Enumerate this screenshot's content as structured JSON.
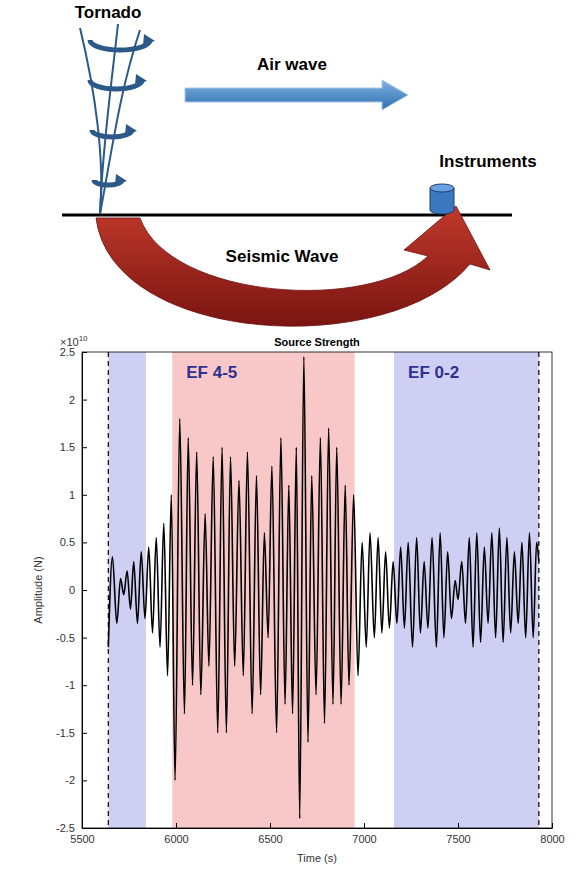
{
  "diagram": {
    "labels": {
      "tornado": "Tornado",
      "air_wave": "Air wave",
      "instruments": "Instruments",
      "seismic_wave": "Seismic Wave"
    }
  },
  "chart_data": {
    "type": "line",
    "title": "Source Strength",
    "x_label": "Time (s)",
    "y_label": "Amplitude (N)",
    "y_scale_text": "×10",
    "y_scale_exponent": "10",
    "color": "#000000",
    "grid": false,
    "xlim": [
      5500,
      8000
    ],
    "xticks": [
      5500,
      6000,
      6500,
      7000,
      7500,
      8000
    ],
    "ylim": [
      -2.5,
      2.5
    ],
    "yticks": [
      -2.5,
      -2,
      -1.5,
      -1,
      -0.5,
      0,
      0.5,
      1,
      1.5,
      2,
      2.5
    ],
    "regions": [
      {
        "x0": 5640,
        "x1": 5840,
        "color": "#cfcff4"
      },
      {
        "x0": 5980,
        "x1": 6950,
        "color": "#f8c8c8",
        "label": "EF 4-5"
      },
      {
        "x0": 7160,
        "x1": 7930,
        "color": "#cfcff4",
        "label": "EF 0-2"
      }
    ],
    "vlines": [
      5640,
      7930
    ],
    "x": [
      5640,
      5662,
      5685,
      5705,
      5722,
      5740,
      5758,
      5775,
      5795,
      5815,
      5835,
      5855,
      5875,
      5895,
      5915,
      5935,
      5955,
      5975,
      5995,
      6020,
      6045,
      6065,
      6088,
      6110,
      6132,
      6155,
      6175,
      6198,
      6222,
      6245,
      6268,
      6290,
      6312,
      6335,
      6358,
      6380,
      6405,
      6428,
      6450,
      6470,
      6490,
      6510,
      6535,
      6558,
      6580,
      6600,
      6620,
      6640,
      6658,
      6680,
      6702,
      6722,
      6745,
      6768,
      6790,
      6812,
      6835,
      6855,
      6878,
      6900,
      6920,
      6945,
      6968,
      6990,
      7012,
      7032,
      7055,
      7075,
      7095,
      7115,
      7135,
      7155,
      7175,
      7195,
      7215,
      7235,
      7258,
      7280,
      7300,
      7320,
      7340,
      7362,
      7385,
      7405,
      7425,
      7445,
      7465,
      7485,
      7500,
      7520,
      7540,
      7560,
      7580,
      7600,
      7620,
      7640,
      7660,
      7680,
      7700,
      7720,
      7740,
      7760,
      7780,
      7800,
      7820,
      7840,
      7860,
      7880,
      7900,
      7918,
      7930
    ],
    "values": [
      -0.6,
      0.35,
      -0.35,
      0.12,
      -0.05,
      0.2,
      -0.2,
      0.3,
      -0.35,
      0.4,
      -0.3,
      0.45,
      -0.45,
      0.55,
      -0.6,
      0.7,
      -0.9,
      1.0,
      -2.0,
      1.8,
      -1.3,
      1.6,
      -1.0,
      1.45,
      -1.1,
      0.8,
      -0.8,
      1.4,
      -1.5,
      1.5,
      -1.5,
      1.4,
      -0.8,
      1.15,
      -0.9,
      1.45,
      -1.3,
      1.2,
      -1.1,
      0.6,
      -0.5,
      1.3,
      -1.5,
      1.6,
      -1.2,
      1.1,
      -1.3,
      1.5,
      -2.4,
      2.45,
      -1.6,
      1.2,
      -1.1,
      1.6,
      -1.4,
      1.7,
      -1.2,
      1.5,
      -1.2,
      1.1,
      -1.0,
      1.0,
      -0.9,
      0.5,
      -0.6,
      0.6,
      -0.5,
      0.55,
      -0.45,
      0.4,
      -0.4,
      0.3,
      -0.35,
      0.45,
      -0.4,
      0.5,
      -0.6,
      0.55,
      -0.45,
      0.3,
      -0.4,
      0.55,
      -0.6,
      0.6,
      -0.5,
      0.4,
      -0.3,
      0.1,
      -0.1,
      0.3,
      -0.35,
      0.55,
      -0.6,
      0.6,
      -0.55,
      0.45,
      -0.35,
      0.6,
      -0.5,
      0.65,
      -0.55,
      0.55,
      -0.45,
      0.4,
      -0.35,
      0.5,
      -0.5,
      0.6,
      -0.5,
      0.5,
      0.3
    ]
  }
}
